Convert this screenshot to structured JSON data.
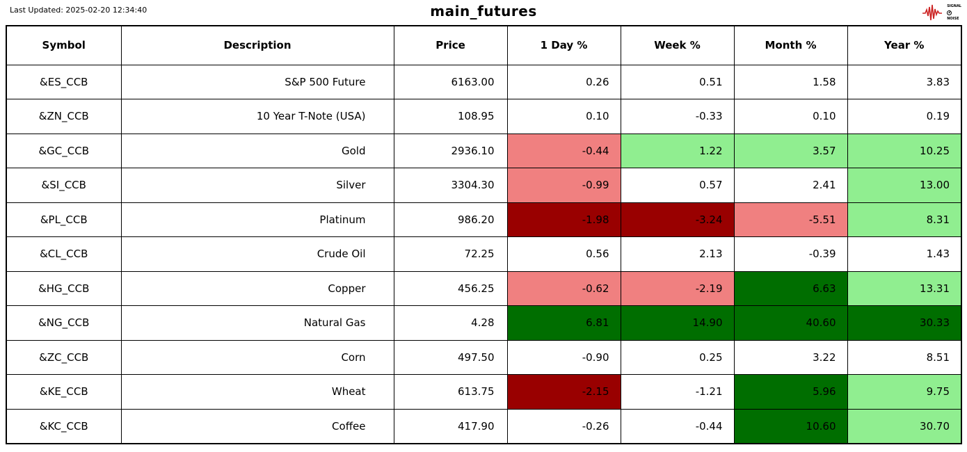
{
  "last_updated": "Last Updated: 2025-02-20 12:34:40",
  "logo": {
    "top": "SIGNAL",
    "mid": "2",
    "bottom": "NOISE"
  },
  "colors": {
    "none": "#FFFFFF",
    "light_red": "#F08080",
    "dark_red": "#990000",
    "light_green": "#90EE90",
    "dark_green": "#006E00"
  },
  "chart_data": {
    "type": "table",
    "title": "main_futures",
    "columns": [
      "Symbol",
      "Description",
      "Price",
      "1 Day %",
      "Week %",
      "Month %",
      "Year %"
    ],
    "rows": [
      {
        "symbol": "&ES_CCB",
        "description": "S&P 500 Future",
        "price": "6163.00",
        "day": "0.26",
        "week": "0.51",
        "month": "1.58",
        "year": "3.83",
        "cell_colors": [
          "none",
          "none",
          "none",
          "none"
        ]
      },
      {
        "symbol": "&ZN_CCB",
        "description": "10 Year T-Note (USA)",
        "price": "108.95",
        "day": "0.10",
        "week": "-0.33",
        "month": "0.10",
        "year": "0.19",
        "cell_colors": [
          "none",
          "none",
          "none",
          "none"
        ]
      },
      {
        "symbol": "&GC_CCB",
        "description": "Gold",
        "price": "2936.10",
        "day": "-0.44",
        "week": "1.22",
        "month": "3.57",
        "year": "10.25",
        "cell_colors": [
          "light_red",
          "light_green",
          "light_green",
          "light_green"
        ]
      },
      {
        "symbol": "&SI_CCB",
        "description": "Silver",
        "price": "3304.30",
        "day": "-0.99",
        "week": "0.57",
        "month": "2.41",
        "year": "13.00",
        "cell_colors": [
          "light_red",
          "none",
          "none",
          "light_green"
        ]
      },
      {
        "symbol": "&PL_CCB",
        "description": "Platinum",
        "price": "986.20",
        "day": "-1.98",
        "week": "-3.24",
        "month": "-5.51",
        "year": "8.31",
        "cell_colors": [
          "dark_red",
          "dark_red",
          "light_red",
          "light_green"
        ]
      },
      {
        "symbol": "&CL_CCB",
        "description": "Crude Oil",
        "price": "72.25",
        "day": "0.56",
        "week": "2.13",
        "month": "-0.39",
        "year": "1.43",
        "cell_colors": [
          "none",
          "none",
          "none",
          "none"
        ]
      },
      {
        "symbol": "&HG_CCB",
        "description": "Copper",
        "price": "456.25",
        "day": "-0.62",
        "week": "-2.19",
        "month": "6.63",
        "year": "13.31",
        "cell_colors": [
          "light_red",
          "light_red",
          "dark_green",
          "light_green"
        ]
      },
      {
        "symbol": "&NG_CCB",
        "description": "Natural Gas",
        "price": "4.28",
        "day": "6.81",
        "week": "14.90",
        "month": "40.60",
        "year": "30.33",
        "cell_colors": [
          "dark_green",
          "dark_green",
          "dark_green",
          "dark_green"
        ]
      },
      {
        "symbol": "&ZC_CCB",
        "description": "Corn",
        "price": "497.50",
        "day": "-0.90",
        "week": "0.25",
        "month": "3.22",
        "year": "8.51",
        "cell_colors": [
          "none",
          "none",
          "none",
          "none"
        ]
      },
      {
        "symbol": "&KE_CCB",
        "description": "Wheat",
        "price": "613.75",
        "day": "-2.15",
        "week": "-1.21",
        "month": "5.96",
        "year": "9.75",
        "cell_colors": [
          "dark_red",
          "none",
          "dark_green",
          "light_green"
        ]
      },
      {
        "symbol": "&KC_CCB",
        "description": "Coffee",
        "price": "417.90",
        "day": "-0.26",
        "week": "-0.44",
        "month": "10.60",
        "year": "30.70",
        "cell_colors": [
          "none",
          "none",
          "dark_green",
          "light_green"
        ]
      }
    ]
  }
}
